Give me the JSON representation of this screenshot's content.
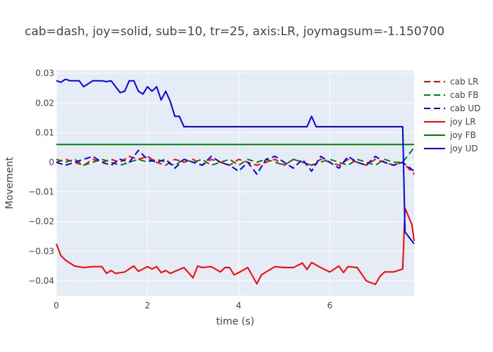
{
  "chart_data": {
    "type": "line",
    "title": "cab=dash, joy=solid, sub=10, tr=25, axis:LR, joymagsum=-1.150700",
    "xlabel": "time (s)",
    "ylabel": "Movement",
    "xlim": [
      0,
      7.85
    ],
    "ylim": [
      -0.045,
      0.031
    ],
    "x_ticks": [
      0,
      2,
      4,
      6
    ],
    "y_ticks": [
      0.03,
      0.02,
      0.01,
      0,
      -0.01,
      -0.02,
      -0.03,
      -0.04
    ],
    "x_tick_labels": [
      "0",
      "2",
      "4",
      "6"
    ],
    "y_tick_labels": [
      "0.03",
      "0.02",
      "0.01",
      "0",
      "−0.01",
      "−0.02",
      "−0.03",
      "−0.04"
    ],
    "grid": true,
    "legend_position": "top-right",
    "series": [
      {
        "name": "cab LR",
        "style": "dash",
        "color": "#ff0000",
        "x": [
          0,
          0.2,
          0.4,
          0.6,
          0.8,
          1.0,
          1.2,
          1.4,
          1.6,
          1.8,
          2.0,
          2.2,
          2.4,
          2.6,
          2.8,
          3.0,
          3.2,
          3.4,
          3.6,
          3.8,
          4.0,
          4.2,
          4.4,
          4.6,
          4.8,
          5.0,
          5.2,
          5.4,
          5.6,
          5.8,
          6.0,
          6.2,
          6.4,
          6.6,
          6.8,
          7.0,
          7.2,
          7.4,
          7.6,
          7.85
        ],
        "y": [
          0,
          0.001,
          0,
          -0.001,
          0.001,
          0,
          0.001,
          0,
          0.002,
          0.001,
          0.002,
          0,
          -0.001,
          0.001,
          0,
          0.001,
          -0.001,
          0.001,
          0,
          -0.001,
          0.001,
          0,
          -0.001,
          0,
          0.001,
          -0.001,
          0.001,
          0,
          -0.001,
          0.001,
          0,
          -0.001,
          0.001,
          0,
          -0.001,
          0.001,
          0,
          -0.001,
          0,
          -0.004
        ]
      },
      {
        "name": "cab FB",
        "style": "dash",
        "color": "#008000",
        "x": [
          0,
          0.2,
          0.4,
          0.6,
          0.8,
          1.0,
          1.2,
          1.4,
          1.6,
          1.8,
          2.0,
          2.2,
          2.4,
          2.6,
          2.8,
          3.0,
          3.2,
          3.4,
          3.6,
          3.8,
          4.0,
          4.2,
          4.4,
          4.6,
          4.8,
          5.0,
          5.2,
          5.4,
          5.6,
          5.8,
          6.0,
          6.2,
          6.4,
          6.6,
          6.8,
          7.0,
          7.2,
          7.4,
          7.6,
          7.85
        ],
        "y": [
          0.001,
          0,
          0.001,
          -0.001,
          0,
          0.001,
          0,
          -0.001,
          0,
          0.001,
          0,
          0.001,
          0,
          -0.001,
          0.001,
          0,
          0.001,
          -0.001,
          0,
          0.001,
          -0.001,
          0.001,
          0,
          0.001,
          0,
          -0.001,
          0.001,
          0,
          -0.001,
          0,
          0.001,
          0,
          -0.001,
          0.001,
          0,
          -0.001,
          0.001,
          0,
          0,
          0.005
        ]
      },
      {
        "name": "cab UD",
        "style": "dash",
        "color": "#0000ff",
        "x": [
          0,
          0.2,
          0.4,
          0.6,
          0.8,
          1.0,
          1.2,
          1.4,
          1.6,
          1.8,
          2.0,
          2.2,
          2.4,
          2.6,
          2.8,
          3.0,
          3.2,
          3.4,
          3.6,
          3.8,
          4.0,
          4.2,
          4.4,
          4.6,
          4.8,
          5.0,
          5.2,
          5.4,
          5.6,
          5.8,
          6.0,
          6.2,
          6.4,
          6.6,
          6.8,
          7.0,
          7.2,
          7.4,
          7.6,
          7.85
        ],
        "y": [
          0,
          -0.001,
          0,
          0.001,
          0.002,
          0,
          -0.001,
          0.001,
          0,
          0.004,
          0.001,
          0,
          0.001,
          -0.002,
          0.001,
          0,
          -0.001,
          0.002,
          0,
          -0.001,
          -0.003,
          0,
          -0.004,
          0.001,
          0.002,
          0,
          -0.002,
          0.001,
          -0.003,
          0.002,
          0,
          -0.002,
          0.002,
          0,
          -0.001,
          0.002,
          0,
          -0.001,
          0,
          -0.003
        ]
      },
      {
        "name": "joy LR",
        "style": "solid",
        "color": "#ff0000",
        "x": [
          0,
          0.1,
          0.2,
          0.4,
          0.6,
          0.8,
          1.0,
          1.1,
          1.2,
          1.3,
          1.5,
          1.7,
          1.8,
          2.0,
          2.1,
          2.2,
          2.3,
          2.4,
          2.5,
          2.6,
          2.8,
          3.0,
          3.1,
          3.2,
          3.4,
          3.6,
          3.7,
          3.8,
          3.9,
          4.0,
          4.2,
          4.4,
          4.5,
          4.6,
          4.8,
          5.0,
          5.2,
          5.4,
          5.5,
          5.6,
          5.8,
          6.0,
          6.2,
          6.3,
          6.4,
          6.6,
          6.8,
          7.0,
          7.1,
          7.2,
          7.4,
          7.6,
          7.65,
          7.8,
          7.85
        ],
        "y": [
          -0.0275,
          -0.0315,
          -0.033,
          -0.035,
          -0.0355,
          -0.0352,
          -0.0352,
          -0.0375,
          -0.0365,
          -0.0375,
          -0.037,
          -0.035,
          -0.0368,
          -0.0352,
          -0.036,
          -0.0352,
          -0.0372,
          -0.0365,
          -0.0375,
          -0.0368,
          -0.0355,
          -0.039,
          -0.035,
          -0.0355,
          -0.0352,
          -0.037,
          -0.0355,
          -0.0355,
          -0.038,
          -0.0372,
          -0.0355,
          -0.041,
          -0.038,
          -0.037,
          -0.0352,
          -0.0355,
          -0.0355,
          -0.034,
          -0.0362,
          -0.0338,
          -0.0355,
          -0.037,
          -0.035,
          -0.0372,
          -0.0352,
          -0.0355,
          -0.04,
          -0.0412,
          -0.0385,
          -0.037,
          -0.037,
          -0.036,
          -0.0155,
          -0.021,
          -0.0265
        ]
      },
      {
        "name": "joy FB",
        "style": "solid",
        "color": "#008000",
        "x": [
          0,
          7.85
        ],
        "y": [
          0.006,
          0.006
        ]
      },
      {
        "name": "joy UD",
        "style": "solid",
        "color": "#0000ff",
        "x": [
          0,
          0.1,
          0.2,
          0.3,
          0.5,
          0.6,
          0.8,
          1.0,
          1.1,
          1.2,
          1.4,
          1.5,
          1.6,
          1.7,
          1.8,
          1.9,
          2.0,
          2.1,
          2.2,
          2.3,
          2.4,
          2.5,
          2.6,
          2.7,
          2.8,
          3.0,
          5.5,
          5.6,
          5.7,
          6.0,
          7.0,
          7.5,
          7.6,
          7.65,
          7.85
        ],
        "y": [
          0.0275,
          0.027,
          0.028,
          0.0275,
          0.0275,
          0.0255,
          0.0275,
          0.0275,
          0.0272,
          0.0275,
          0.0235,
          0.024,
          0.0275,
          0.0275,
          0.024,
          0.023,
          0.0255,
          0.024,
          0.0255,
          0.021,
          0.024,
          0.0205,
          0.0155,
          0.0155,
          0.012,
          0.012,
          0.012,
          0.0155,
          0.012,
          0.012,
          0.012,
          0.012,
          0.012,
          -0.0235,
          -0.0275
        ]
      }
    ]
  }
}
